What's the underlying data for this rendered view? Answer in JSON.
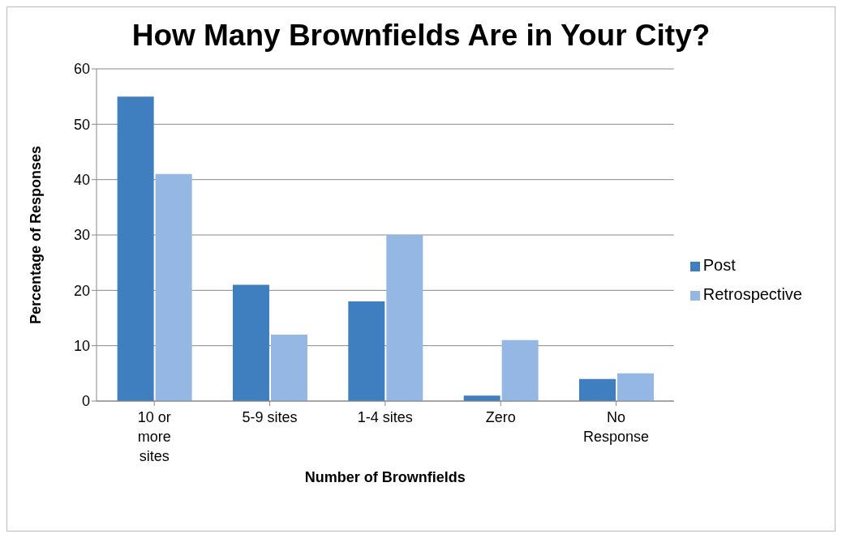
{
  "chart_data": {
    "type": "bar",
    "title": "How Many Brownfields Are in Your City?",
    "xlabel": "Number of Brownfields",
    "ylabel": "Percentage of Responses",
    "categories": [
      "10 or more sites",
      "5-9 sites",
      "1-4 sites",
      "Zero",
      "No Response"
    ],
    "series": [
      {
        "name": "Post",
        "color": "#3f7fc0",
        "values": [
          55,
          21,
          18,
          1,
          4
        ]
      },
      {
        "name": "Retrospective",
        "color": "#94b8e3",
        "values": [
          41,
          12,
          30,
          11,
          5
        ]
      }
    ],
    "ylim": [
      0,
      60
    ],
    "yticks": [
      0,
      10,
      20,
      30,
      40,
      50,
      60
    ],
    "grid": "y",
    "legend": "right"
  }
}
